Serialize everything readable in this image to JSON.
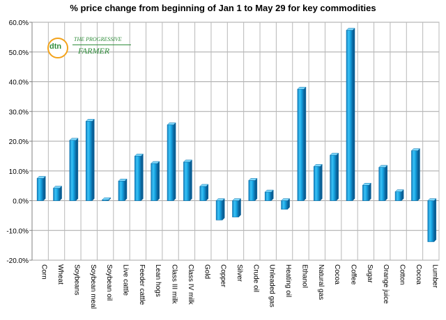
{
  "logo": {
    "dtn": "dtn",
    "line1": "THE PROGRESSIVE",
    "line2": "FARMER",
    "color": "#2f8c3a",
    "ring_color": "#f3a21a"
  },
  "chart_data": {
    "type": "bar",
    "title": "% price change from beginning of Jan 1 to May 29 for key commodities",
    "categories": [
      "Corn",
      "Wheat",
      "Soybeans",
      "Soybean meal",
      "Soybean oil",
      "Live cattle",
      "Feeder cattle",
      "Lean hogs",
      "Class III milk",
      "Class IV milk",
      "Gold",
      "Copper",
      "Silver",
      "Crude oil",
      "Unleaded gas",
      "Heating oil",
      "Ethanol",
      "Natural gas",
      "Cocoa",
      "Coffee",
      "Sugar",
      "Orange juice",
      "Cotton",
      "Cocoa",
      "Lumber"
    ],
    "values": [
      7.5,
      4.2,
      20.3,
      26.7,
      0.3,
      6.6,
      15.0,
      12.5,
      25.5,
      13.0,
      4.8,
      -6.5,
      -5.5,
      6.8,
      2.9,
      -2.9,
      37.5,
      11.5,
      15.3,
      57.3,
      5.2,
      11.2,
      3.0,
      16.8,
      -13.8
    ],
    "ylim": [
      -20,
      60
    ],
    "yticks": [
      -20,
      -10,
      0,
      10,
      20,
      30,
      40,
      50,
      60
    ],
    "ytick_labels": [
      "-20.0%",
      "-10.0%",
      "0.0%",
      "10.0%",
      "20.0%",
      "30.0%",
      "40.0%",
      "50.0%",
      "60.0%"
    ],
    "grid": true,
    "bar_color": "#19a9e6",
    "xlabel": "",
    "ylabel": ""
  }
}
